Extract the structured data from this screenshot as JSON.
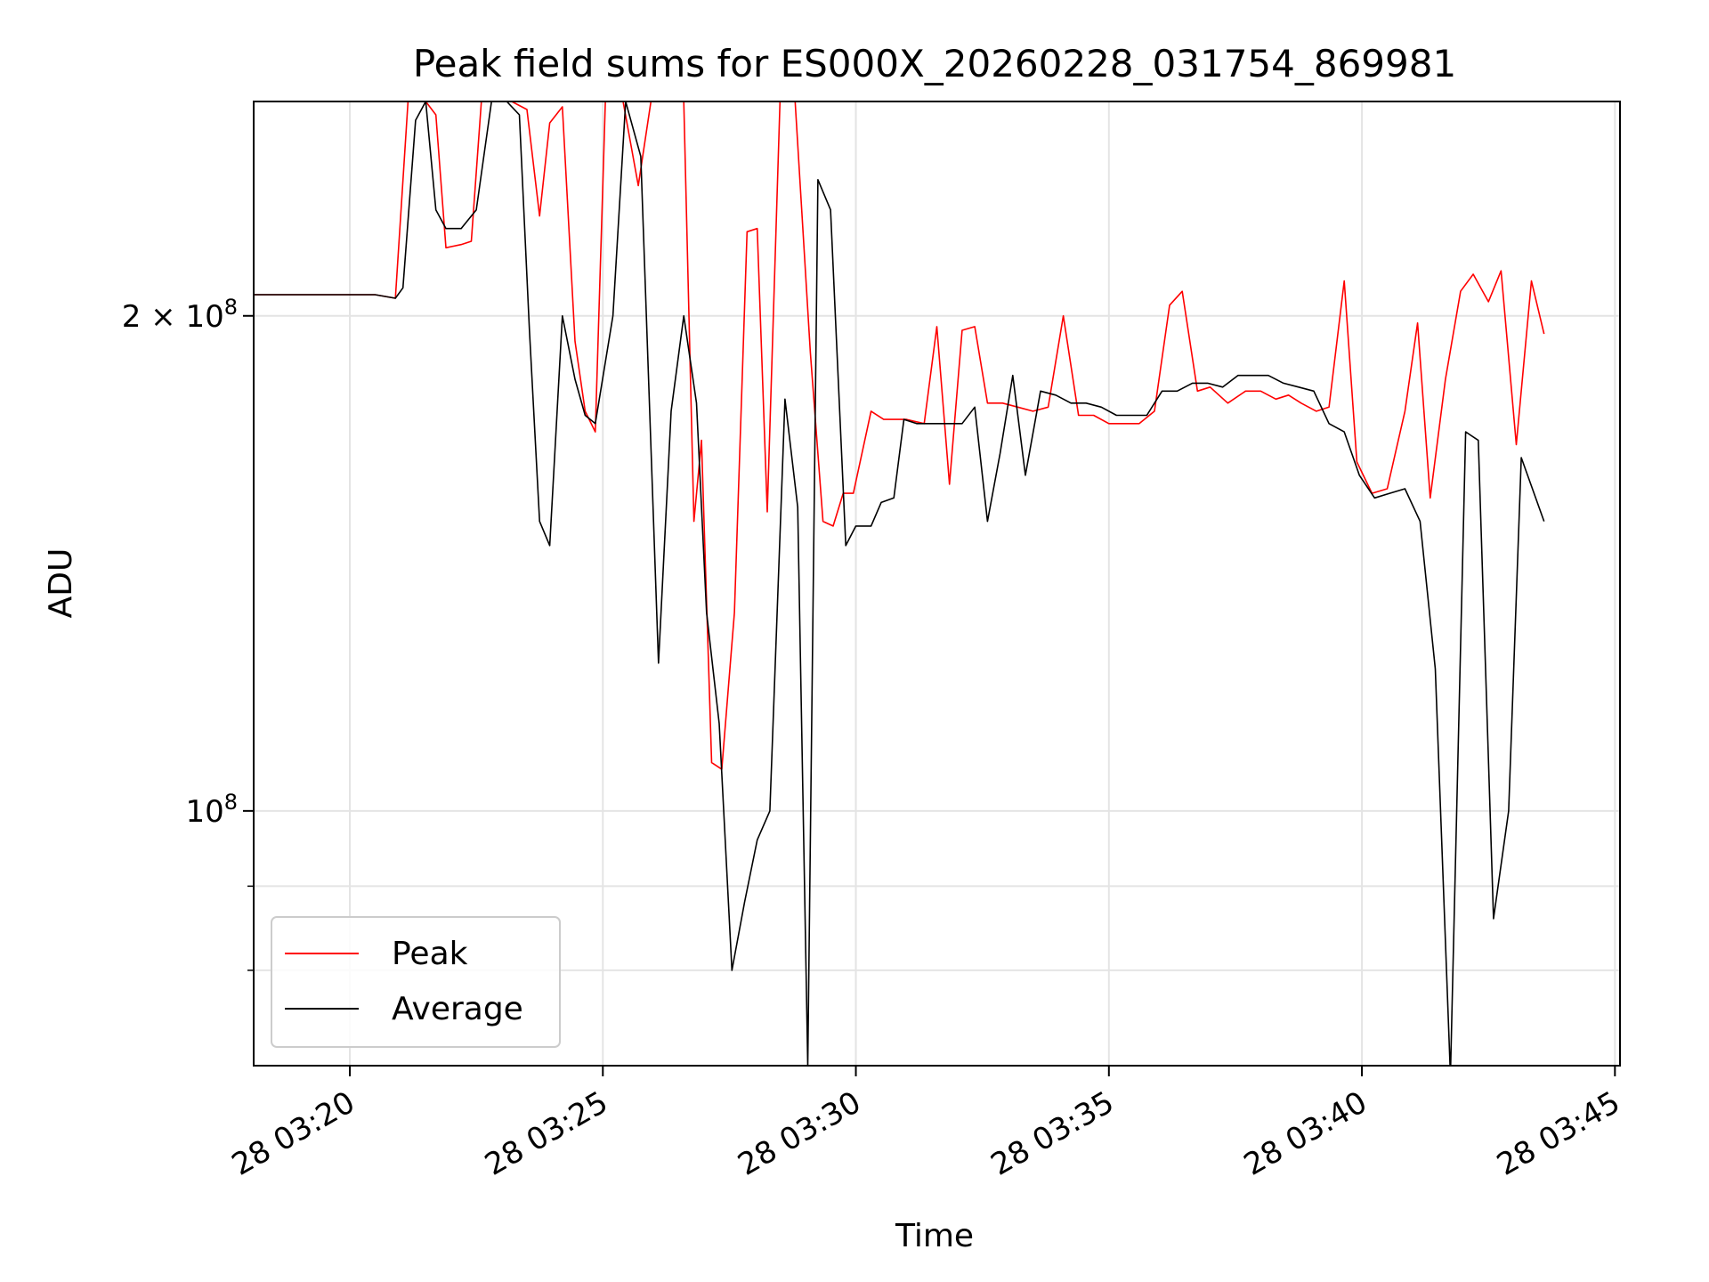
{
  "chart_data": {
    "type": "line",
    "title": "Peak field sums for ES000X_20260228_031754_869981",
    "xlabel": "Time",
    "ylabel": "ADU",
    "y_scale": "log",
    "grid": true,
    "legend_position": "lower-left",
    "xlim_minutes": [
      18.1,
      45.1
    ],
    "ylim": [
      70000000,
      270000000
    ],
    "x_ticks": [
      {
        "minute": 20,
        "label": "28 03:20"
      },
      {
        "minute": 25,
        "label": "28 03:25"
      },
      {
        "minute": 30,
        "label": "28 03:30"
      },
      {
        "minute": 35,
        "label": "28 03:35"
      },
      {
        "minute": 40,
        "label": "28 03:40"
      },
      {
        "minute": 45,
        "label": "28 03:45"
      }
    ],
    "y_ticks": [
      {
        "value": 100000000,
        "label": "10",
        "exp": "8"
      },
      {
        "value": 200000000,
        "mantissa": "2 × 10",
        "exp": "8"
      }
    ],
    "y_minor_ticks": [
      80000000,
      90000000
    ],
    "x_time_labels_minutes": [
      18.0,
      20.8,
      21.2,
      23.2,
      24.2,
      24.8,
      26.0,
      26.8,
      27.4,
      28.0,
      28.5,
      29.0,
      29.5,
      30.0,
      30.6,
      31.5,
      32.0,
      33.5,
      34.0,
      34.5,
      35.5,
      36.5,
      37.5,
      38.0,
      38.5,
      39.5,
      40.5,
      41.0,
      41.5,
      42.0,
      43.0,
      43.5,
      44.0,
      44.5,
      45.1
    ],
    "series": [
      {
        "name": "Peak",
        "color": "#ff0000",
        "points": [
          [
            18.1,
            206000000
          ],
          [
            18.5,
            206000000
          ],
          [
            19.0,
            206000000
          ],
          [
            19.5,
            206000000
          ],
          [
            20.0,
            206000000
          ],
          [
            20.5,
            206000000
          ],
          [
            20.9,
            205000000
          ],
          [
            21.15,
            270000000
          ],
          [
            21.5,
            270000000
          ],
          [
            21.7,
            265000000
          ],
          [
            21.9,
            220000000
          ],
          [
            22.2,
            221000000
          ],
          [
            22.4,
            222000000
          ],
          [
            22.6,
            270000000
          ],
          [
            23.2,
            270000000
          ],
          [
            23.5,
            267000000
          ],
          [
            23.75,
            230000000
          ],
          [
            23.95,
            262000000
          ],
          [
            24.2,
            268000000
          ],
          [
            24.45,
            193000000
          ],
          [
            24.65,
            175000000
          ],
          [
            24.85,
            170000000
          ],
          [
            25.05,
            270000000
          ],
          [
            25.4,
            270000000
          ],
          [
            25.7,
            240000000
          ],
          [
            25.95,
            270000000
          ],
          [
            26.6,
            270000000
          ],
          [
            26.8,
            150000000
          ],
          [
            26.95,
            168000000
          ],
          [
            27.15,
            107000000
          ],
          [
            27.35,
            106000000
          ],
          [
            27.6,
            132000000
          ],
          [
            27.85,
            225000000
          ],
          [
            28.05,
            226000000
          ],
          [
            28.25,
            152000000
          ],
          [
            28.5,
            270000000
          ],
          [
            28.8,
            270000000
          ],
          [
            29.1,
            190000000
          ],
          [
            29.35,
            150000000
          ],
          [
            29.55,
            149000000
          ],
          [
            29.75,
            156000000
          ],
          [
            29.95,
            156000000
          ],
          [
            30.3,
            175000000
          ],
          [
            30.55,
            173000000
          ],
          [
            30.8,
            173000000
          ],
          [
            31.0,
            173000000
          ],
          [
            31.35,
            172000000
          ],
          [
            31.6,
            197000000
          ],
          [
            31.85,
            158000000
          ],
          [
            32.1,
            196000000
          ],
          [
            32.35,
            197000000
          ],
          [
            32.6,
            177000000
          ],
          [
            32.9,
            177000000
          ],
          [
            33.2,
            176000000
          ],
          [
            33.5,
            175000000
          ],
          [
            33.8,
            176000000
          ],
          [
            34.1,
            200000000
          ],
          [
            34.4,
            174000000
          ],
          [
            34.7,
            174000000
          ],
          [
            35.0,
            172000000
          ],
          [
            35.3,
            172000000
          ],
          [
            35.6,
            172000000
          ],
          [
            35.9,
            175000000
          ],
          [
            36.2,
            203000000
          ],
          [
            36.45,
            207000000
          ],
          [
            36.75,
            180000000
          ],
          [
            37.0,
            181000000
          ],
          [
            37.35,
            177000000
          ],
          [
            37.7,
            180000000
          ],
          [
            38.0,
            180000000
          ],
          [
            38.3,
            178000000
          ],
          [
            38.55,
            179000000
          ],
          [
            38.8,
            177000000
          ],
          [
            39.1,
            175000000
          ],
          [
            39.35,
            176000000
          ],
          [
            39.65,
            210000000
          ],
          [
            39.9,
            163000000
          ],
          [
            40.2,
            156000000
          ],
          [
            40.5,
            157000000
          ],
          [
            40.85,
            175000000
          ],
          [
            41.1,
            198000000
          ],
          [
            41.35,
            155000000
          ],
          [
            41.65,
            183000000
          ],
          [
            41.95,
            207000000
          ],
          [
            42.2,
            212000000
          ],
          [
            42.5,
            204000000
          ],
          [
            42.75,
            213000000
          ],
          [
            43.05,
            167000000
          ],
          [
            43.35,
            210000000
          ],
          [
            43.6,
            195000000
          ]
        ]
      },
      {
        "name": "Average",
        "color": "#000000",
        "points": [
          [
            18.1,
            206000000
          ],
          [
            18.5,
            206000000
          ],
          [
            19.0,
            206000000
          ],
          [
            19.5,
            206000000
          ],
          [
            20.0,
            206000000
          ],
          [
            20.5,
            206000000
          ],
          [
            20.9,
            205000000
          ],
          [
            21.05,
            208000000
          ],
          [
            21.3,
            263000000
          ],
          [
            21.5,
            270000000
          ],
          [
            21.7,
            232000000
          ],
          [
            21.9,
            226000000
          ],
          [
            22.2,
            226000000
          ],
          [
            22.5,
            232000000
          ],
          [
            22.8,
            270000000
          ],
          [
            23.1,
            270000000
          ],
          [
            23.35,
            265000000
          ],
          [
            23.55,
            196000000
          ],
          [
            23.75,
            150000000
          ],
          [
            23.95,
            145000000
          ],
          [
            24.2,
            200000000
          ],
          [
            24.45,
            183000000
          ],
          [
            24.65,
            174000000
          ],
          [
            24.85,
            172000000
          ],
          [
            25.2,
            200000000
          ],
          [
            25.45,
            270000000
          ],
          [
            25.75,
            250000000
          ],
          [
            26.1,
            123000000
          ],
          [
            26.35,
            175000000
          ],
          [
            26.6,
            200000000
          ],
          [
            26.85,
            177000000
          ],
          [
            27.05,
            132000000
          ],
          [
            27.3,
            113000000
          ],
          [
            27.55,
            80000000
          ],
          [
            27.8,
            88000000
          ],
          [
            28.05,
            96000000
          ],
          [
            28.3,
            100000000
          ],
          [
            28.6,
            178000000
          ],
          [
            28.85,
            153000000
          ],
          [
            29.05,
            70000000
          ],
          [
            29.25,
            242000000
          ],
          [
            29.5,
            232000000
          ],
          [
            29.8,
            145000000
          ],
          [
            30.0,
            149000000
          ],
          [
            30.3,
            149000000
          ],
          [
            30.5,
            154000000
          ],
          [
            30.75,
            155000000
          ],
          [
            30.95,
            173000000
          ],
          [
            31.2,
            172000000
          ],
          [
            31.55,
            172000000
          ],
          [
            31.85,
            172000000
          ],
          [
            32.1,
            172000000
          ],
          [
            32.35,
            176000000
          ],
          [
            32.6,
            150000000
          ],
          [
            32.85,
            165000000
          ],
          [
            33.1,
            184000000
          ],
          [
            33.35,
            160000000
          ],
          [
            33.65,
            180000000
          ],
          [
            33.95,
            179000000
          ],
          [
            34.25,
            177000000
          ],
          [
            34.55,
            177000000
          ],
          [
            34.85,
            176000000
          ],
          [
            35.15,
            174000000
          ],
          [
            35.45,
            174000000
          ],
          [
            35.75,
            174000000
          ],
          [
            36.05,
            180000000
          ],
          [
            36.35,
            180000000
          ],
          [
            36.65,
            182000000
          ],
          [
            36.95,
            182000000
          ],
          [
            37.25,
            181000000
          ],
          [
            37.55,
            184000000
          ],
          [
            37.85,
            184000000
          ],
          [
            38.15,
            184000000
          ],
          [
            38.45,
            182000000
          ],
          [
            38.75,
            181000000
          ],
          [
            39.05,
            180000000
          ],
          [
            39.35,
            172000000
          ],
          [
            39.65,
            170000000
          ],
          [
            39.95,
            160000000
          ],
          [
            40.25,
            155000000
          ],
          [
            40.55,
            156000000
          ],
          [
            40.85,
            157000000
          ],
          [
            41.15,
            150000000
          ],
          [
            41.45,
            122000000
          ],
          [
            41.75,
            69000000
          ],
          [
            42.05,
            170000000
          ],
          [
            42.3,
            168000000
          ],
          [
            42.6,
            86000000
          ],
          [
            42.9,
            100000000
          ],
          [
            43.15,
            164000000
          ],
          [
            43.6,
            150000000
          ]
        ]
      }
    ]
  }
}
